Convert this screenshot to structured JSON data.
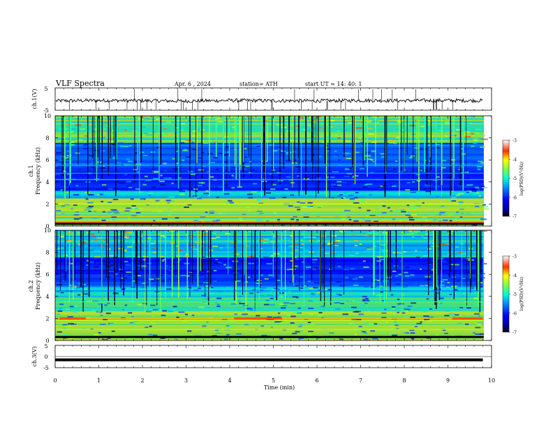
{
  "header": {
    "title": "VLF  Spectra",
    "date": "Apr. 6  , 2024",
    "station": "station= ATH",
    "start": "start  UT  =   14: 40: 1"
  },
  "chart_data": [
    {
      "type": "line",
      "name": "ch1-waveform",
      "ylabel": "ch.1(V)",
      "ylim": [
        -5,
        5
      ],
      "yticks": [
        "5",
        "-5"
      ],
      "x": [
        0,
        1,
        2,
        3,
        4,
        5,
        6,
        7,
        8,
        9,
        9.8
      ],
      "y": [
        -0.8,
        -0.6,
        -0.7,
        -0.9,
        -0.6,
        -0.7,
        -0.8,
        -0.6,
        -0.7,
        -0.6,
        -0.7
      ]
    },
    {
      "type": "heatmap",
      "name": "ch1-spectrogram",
      "ylabel": "Frequency  (kHz)",
      "ylabel2": "ch.1",
      "ylim": [
        0,
        10
      ],
      "yticks": [
        "0",
        "2",
        "4",
        "6",
        "8",
        "10"
      ],
      "color_scale": {
        "label": "log(PSD)(V²/Hz)",
        "ticks": [
          "-3",
          "-4",
          "-5",
          "-6",
          "-7"
        ],
        "range": [
          -7,
          -3
        ]
      }
    },
    {
      "type": "heatmap",
      "name": "ch2-spectrogram",
      "ylabel": "Frequency  (kHz)",
      "ylabel2": "ch.2",
      "ylim": [
        0,
        10
      ],
      "yticks": [
        "0",
        "2",
        "4",
        "6",
        "8",
        "10"
      ],
      "color_scale": {
        "label": "log(PSD)(V²/Hz)",
        "ticks": [
          "-3",
          "-4",
          "-5",
          "-6",
          "-7"
        ],
        "range": [
          -7,
          -3
        ]
      }
    },
    {
      "type": "line",
      "name": "ch3-waveform",
      "ylabel": "ch.3(V)",
      "ylim": [
        -5,
        5
      ],
      "yticks": [
        "5",
        "0",
        "-5"
      ],
      "x": [
        0,
        9.8
      ],
      "y": [
        -1.5,
        -1.5
      ]
    }
  ],
  "xaxis": {
    "label": "Time  (min)",
    "ticks": [
      "0",
      "1",
      "2",
      "3",
      "4",
      "5",
      "6",
      "7",
      "8",
      "9",
      "10"
    ],
    "range": [
      0,
      10
    ]
  },
  "colors": {
    "jet": [
      "#000080",
      "#0000ff",
      "#0080ff",
      "#00ffff",
      "#80ff80",
      "#ffff00",
      "#ff8000",
      "#ff0000",
      "#800000"
    ]
  }
}
